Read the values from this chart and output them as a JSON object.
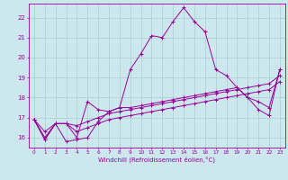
{
  "title": "",
  "xlabel": "Windchill (Refroidissement éolien,°C)",
  "ylabel": "",
  "background_color": "#cce8ee",
  "grid_color": "#aacccc",
  "line_color": "#990099",
  "xlim": [
    -0.5,
    23.5
  ],
  "ylim": [
    15.5,
    22.7
  ],
  "yticks": [
    16,
    17,
    18,
    19,
    20,
    21,
    22
  ],
  "xticks": [
    0,
    1,
    2,
    3,
    4,
    5,
    6,
    7,
    8,
    9,
    10,
    11,
    12,
    13,
    14,
    15,
    16,
    17,
    18,
    19,
    20,
    21,
    22,
    23
  ],
  "series": [
    [
      16.9,
      15.9,
      16.7,
      16.7,
      16.0,
      17.8,
      17.4,
      17.3,
      17.5,
      19.4,
      20.2,
      21.1,
      21.0,
      21.8,
      22.5,
      21.8,
      21.3,
      19.4,
      19.1,
      18.5,
      18.0,
      17.4,
      17.1,
      19.4
    ],
    [
      16.9,
      15.9,
      16.7,
      15.8,
      15.9,
      16.0,
      16.8,
      17.3,
      17.5,
      17.5,
      17.6,
      17.7,
      17.8,
      17.9,
      18.0,
      18.1,
      18.2,
      18.3,
      18.4,
      18.5,
      18.0,
      17.8,
      17.5,
      19.4
    ],
    [
      16.9,
      16.3,
      16.7,
      16.7,
      16.6,
      16.8,
      17.0,
      17.2,
      17.3,
      17.4,
      17.5,
      17.6,
      17.7,
      17.8,
      17.9,
      18.0,
      18.1,
      18.2,
      18.3,
      18.4,
      18.5,
      18.6,
      18.7,
      19.1
    ],
    [
      16.9,
      16.0,
      16.7,
      16.7,
      16.3,
      16.5,
      16.7,
      16.9,
      17.0,
      17.1,
      17.2,
      17.3,
      17.4,
      17.5,
      17.6,
      17.7,
      17.8,
      17.9,
      18.0,
      18.1,
      18.2,
      18.3,
      18.4,
      18.8
    ]
  ]
}
